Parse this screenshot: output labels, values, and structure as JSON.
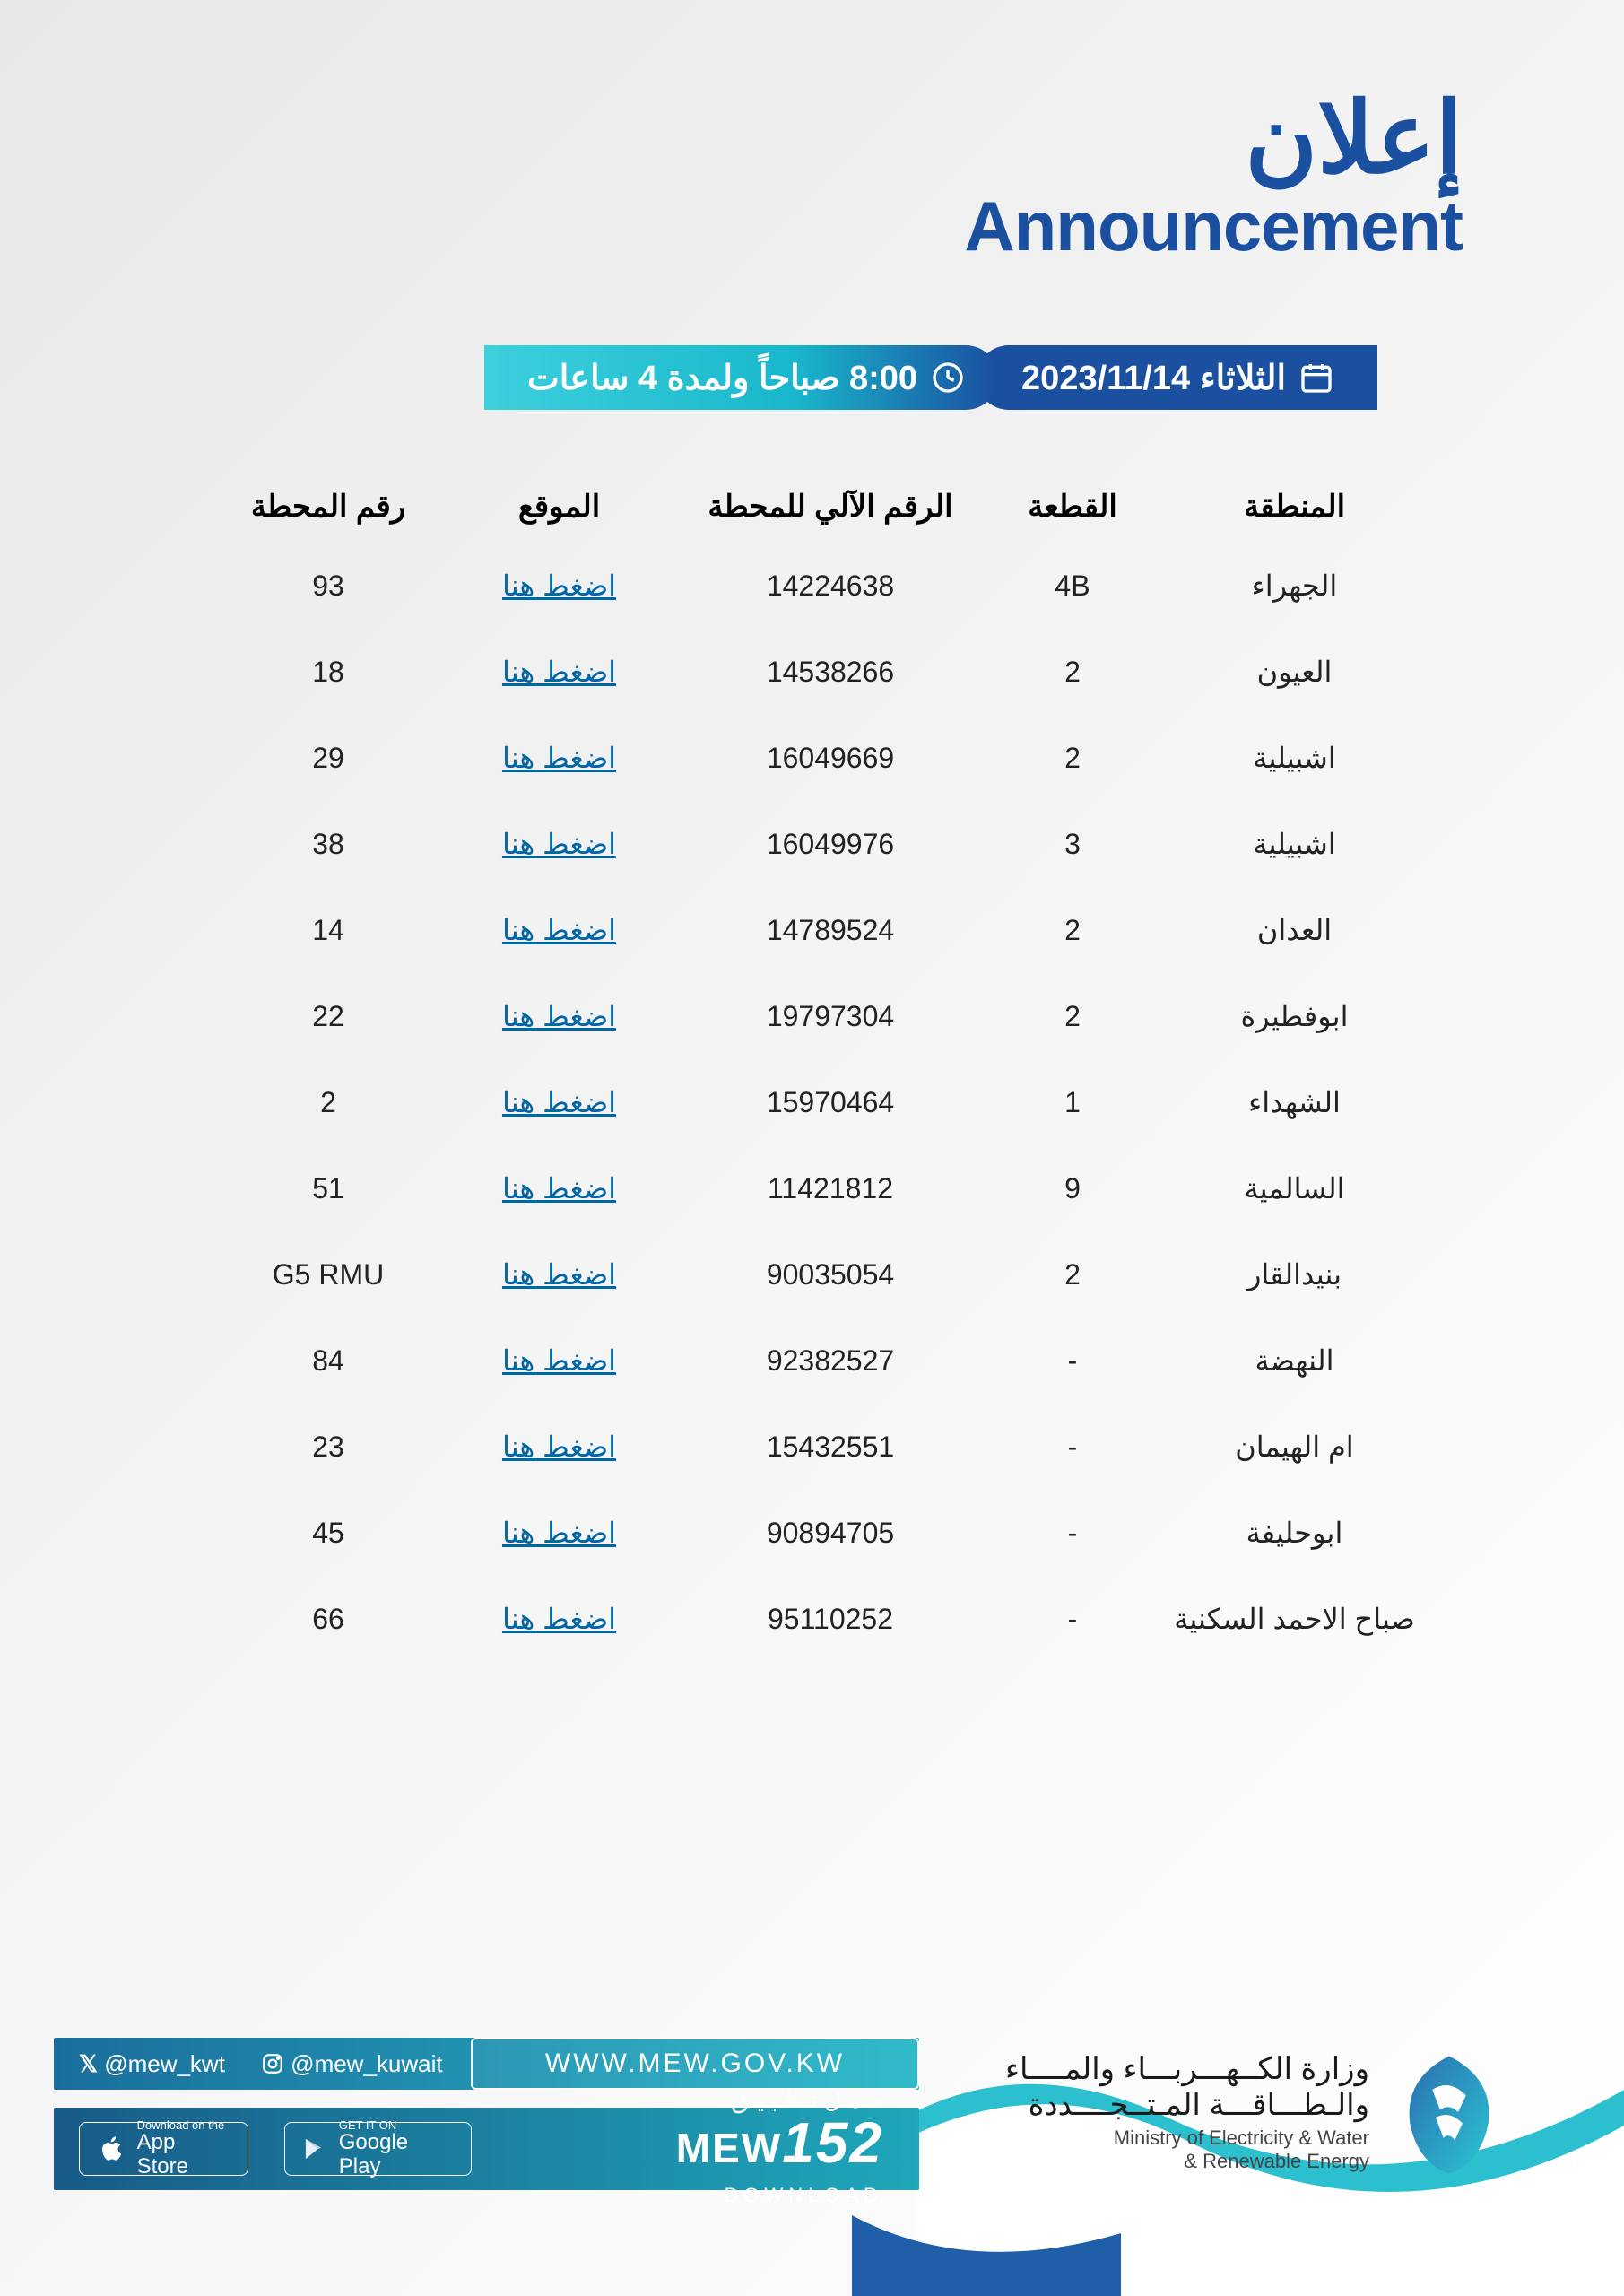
{
  "colors": {
    "brand_blue": "#1b4fa0",
    "teal": "#19b7cc",
    "cyan": "#3dd0dd",
    "dark_teal": "#1a9db0",
    "link": "#0066aa",
    "footer_grad_a": "#1b6e9c",
    "footer_grad_b": "#26b7c8",
    "app_grad_a": "#185b88",
    "app_grad_b": "#1fa7ba",
    "curve_teal": "#2cbfcf",
    "curve_blue": "#1e5fa8"
  },
  "header": {
    "title_ar": "إعلان",
    "title_en": "Announcement"
  },
  "datetime": {
    "date_label": "الثلاثاء 2023/11/14",
    "time_label": "8:00 صباحاً ولمدة 4 ساعات"
  },
  "table": {
    "headers": {
      "region": "المنطقة",
      "block": "القطعة",
      "auto": "الرقم الآلي للمحطة",
      "location": "الموقع",
      "station": "رقم المحطة"
    },
    "link_text": "اضغط هنا",
    "rows": [
      {
        "region": "الجهراء",
        "block": "4B",
        "auto": "14224638",
        "station": "93"
      },
      {
        "region": "العيون",
        "block": "2",
        "auto": "14538266",
        "station": "18"
      },
      {
        "region": "اشبيلية",
        "block": "2",
        "auto": "16049669",
        "station": "29"
      },
      {
        "region": "اشبيلية",
        "block": "3",
        "auto": "16049976",
        "station": "38"
      },
      {
        "region": "العدان",
        "block": "2",
        "auto": "14789524",
        "station": "14"
      },
      {
        "region": "ابوفطيرة",
        "block": "2",
        "auto": "19797304",
        "station": "22"
      },
      {
        "region": "الشهداء",
        "block": "1",
        "auto": "15970464",
        "station": "2"
      },
      {
        "region": "السالمية",
        "block": "9",
        "auto": "11421812",
        "station": "51"
      },
      {
        "region": "بنيدالقار",
        "block": "2",
        "auto": "90035054",
        "station": "G5 RMU"
      },
      {
        "region": "النهضة",
        "block": "-",
        "auto": "92382527",
        "station": "84"
      },
      {
        "region": "ام الهيمان",
        "block": "-",
        "auto": "15432551",
        "station": "23"
      },
      {
        "region": "ابوحليفة",
        "block": "-",
        "auto": "90894705",
        "station": "45"
      },
      {
        "region": "صباح الاحمد السكنية",
        "block": "-",
        "auto": "95110252",
        "station": "66"
      }
    ]
  },
  "footer": {
    "twitter": "@mew_kwt",
    "instagram": "@mew_kuwait",
    "url": "WWW.MEW.GOV.KW",
    "appstore_sm": "Download on the",
    "appstore_lg": "App Store",
    "gplay_sm": "GET IT ON",
    "gplay_lg": "Google Play",
    "mew_ar": "حـمـل تـطـبـيـق",
    "mew_label": "MEW",
    "mew_num": "152",
    "mew_dl": "DOWNLOAD",
    "ministry_ar1": "وزارة الكــهـــربـــاء والمــــاء",
    "ministry_ar2": "والـطـــاقـــة المـتــجــــددة",
    "ministry_en1": "Ministry of Electricity & Water",
    "ministry_en2": "& Renewable Energy"
  }
}
